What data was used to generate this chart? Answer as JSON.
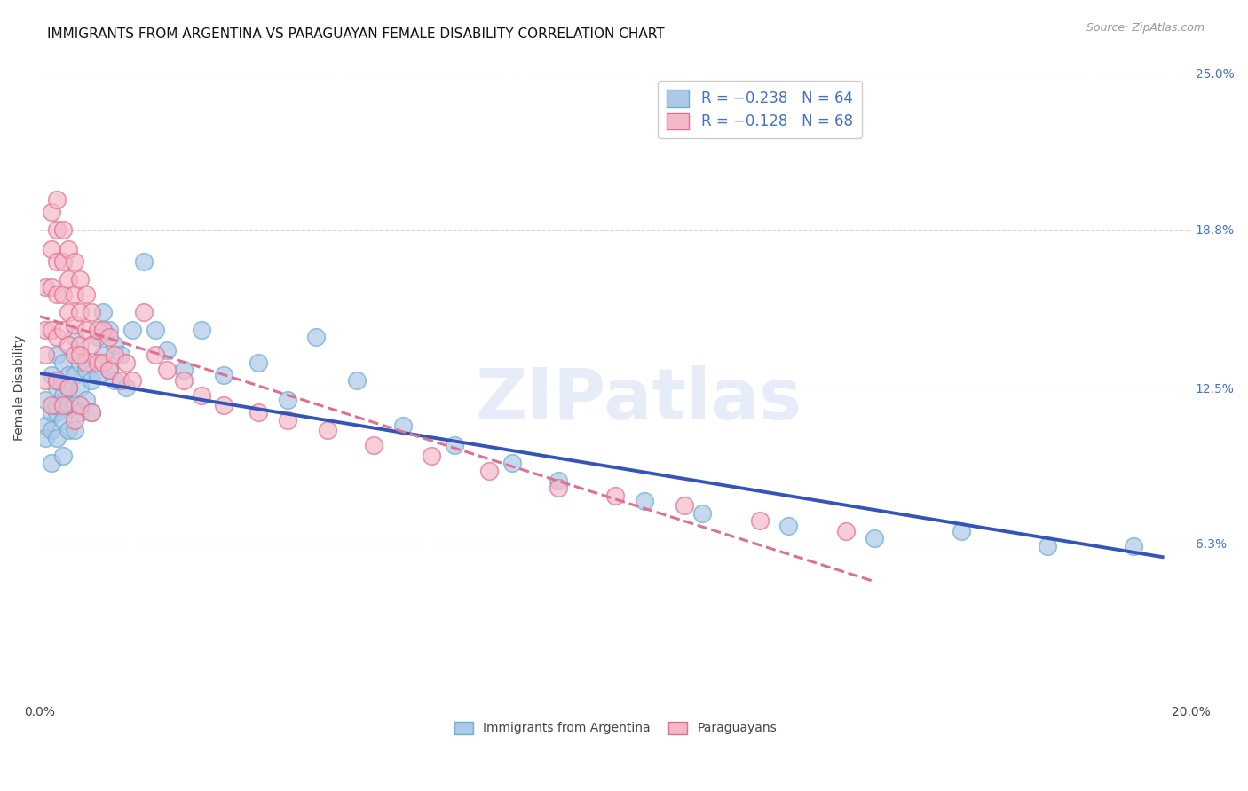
{
  "title": "IMMIGRANTS FROM ARGENTINA VS PARAGUAYAN FEMALE DISABILITY CORRELATION CHART",
  "source": "Source: ZipAtlas.com",
  "ylabel": "Female Disability",
  "watermark": "ZIPatlas",
  "x_min": 0.0,
  "x_max": 0.2,
  "y_min": 0.0,
  "y_max": 0.25,
  "x_ticks": [
    0.0,
    0.04,
    0.08,
    0.12,
    0.16,
    0.2
  ],
  "x_tick_labels": [
    "0.0%",
    "",
    "",
    "",
    "",
    "20.0%"
  ],
  "y_tick_labels_right": [
    "6.3%",
    "12.5%",
    "18.8%",
    "25.0%"
  ],
  "y_tick_vals_right": [
    0.063,
    0.125,
    0.188,
    0.25
  ],
  "argentina_color": "#aec8e8",
  "argentina_edge": "#6baed6",
  "paraguayan_color": "#f4b8c8",
  "paraguayan_edge": "#e07090",
  "argentina_line_color": "#3355bb",
  "paraguayan_line_color": "#e07090",
  "background_color": "#ffffff",
  "grid_color": "#cccccc",
  "title_fontsize": 11,
  "label_fontsize": 10,
  "tick_fontsize": 10,
  "legend_fontsize": 12,
  "argentina_points_x": [
    0.001,
    0.001,
    0.001,
    0.002,
    0.002,
    0.002,
    0.002,
    0.003,
    0.003,
    0.003,
    0.003,
    0.003,
    0.003,
    0.004,
    0.004,
    0.004,
    0.004,
    0.005,
    0.005,
    0.005,
    0.005,
    0.006,
    0.006,
    0.006,
    0.006,
    0.007,
    0.007,
    0.007,
    0.008,
    0.008,
    0.009,
    0.009,
    0.01,
    0.01,
    0.011,
    0.011,
    0.012,
    0.012,
    0.013,
    0.013,
    0.014,
    0.015,
    0.016,
    0.018,
    0.02,
    0.022,
    0.025,
    0.028,
    0.032,
    0.038,
    0.043,
    0.048,
    0.055,
    0.063,
    0.072,
    0.082,
    0.09,
    0.105,
    0.115,
    0.13,
    0.145,
    0.16,
    0.175,
    0.19
  ],
  "argentina_points_y": [
    0.12,
    0.11,
    0.105,
    0.13,
    0.115,
    0.108,
    0.095,
    0.138,
    0.125,
    0.115,
    0.105,
    0.128,
    0.118,
    0.135,
    0.122,
    0.112,
    0.098,
    0.13,
    0.118,
    0.108,
    0.125,
    0.145,
    0.13,
    0.118,
    0.108,
    0.135,
    0.125,
    0.115,
    0.132,
    0.12,
    0.128,
    0.115,
    0.145,
    0.13,
    0.155,
    0.138,
    0.148,
    0.132,
    0.142,
    0.128,
    0.138,
    0.125,
    0.148,
    0.175,
    0.148,
    0.14,
    0.132,
    0.148,
    0.13,
    0.135,
    0.12,
    0.145,
    0.128,
    0.11,
    0.102,
    0.095,
    0.088,
    0.08,
    0.075,
    0.07,
    0.065,
    0.068,
    0.062,
    0.062
  ],
  "paraguayan_points_x": [
    0.001,
    0.001,
    0.001,
    0.001,
    0.002,
    0.002,
    0.002,
    0.002,
    0.003,
    0.003,
    0.003,
    0.003,
    0.003,
    0.004,
    0.004,
    0.004,
    0.004,
    0.005,
    0.005,
    0.005,
    0.005,
    0.006,
    0.006,
    0.006,
    0.006,
    0.007,
    0.007,
    0.007,
    0.008,
    0.008,
    0.008,
    0.009,
    0.009,
    0.01,
    0.01,
    0.011,
    0.011,
    0.012,
    0.012,
    0.013,
    0.014,
    0.015,
    0.016,
    0.018,
    0.02,
    0.022,
    0.025,
    0.028,
    0.032,
    0.038,
    0.043,
    0.05,
    0.058,
    0.068,
    0.078,
    0.09,
    0.1,
    0.112,
    0.125,
    0.14,
    0.002,
    0.003,
    0.004,
    0.005,
    0.006,
    0.007,
    0.007,
    0.009
  ],
  "paraguayan_points_y": [
    0.165,
    0.148,
    0.138,
    0.128,
    0.195,
    0.18,
    0.165,
    0.148,
    0.2,
    0.188,
    0.175,
    0.162,
    0.145,
    0.188,
    0.175,
    0.162,
    0.148,
    0.18,
    0.168,
    0.155,
    0.142,
    0.175,
    0.162,
    0.15,
    0.138,
    0.168,
    0.155,
    0.142,
    0.162,
    0.148,
    0.135,
    0.155,
    0.142,
    0.148,
    0.135,
    0.148,
    0.135,
    0.145,
    0.132,
    0.138,
    0.128,
    0.135,
    0.128,
    0.155,
    0.138,
    0.132,
    0.128,
    0.122,
    0.118,
    0.115,
    0.112,
    0.108,
    0.102,
    0.098,
    0.092,
    0.085,
    0.082,
    0.078,
    0.072,
    0.068,
    0.118,
    0.128,
    0.118,
    0.125,
    0.112,
    0.118,
    0.138,
    0.115
  ]
}
